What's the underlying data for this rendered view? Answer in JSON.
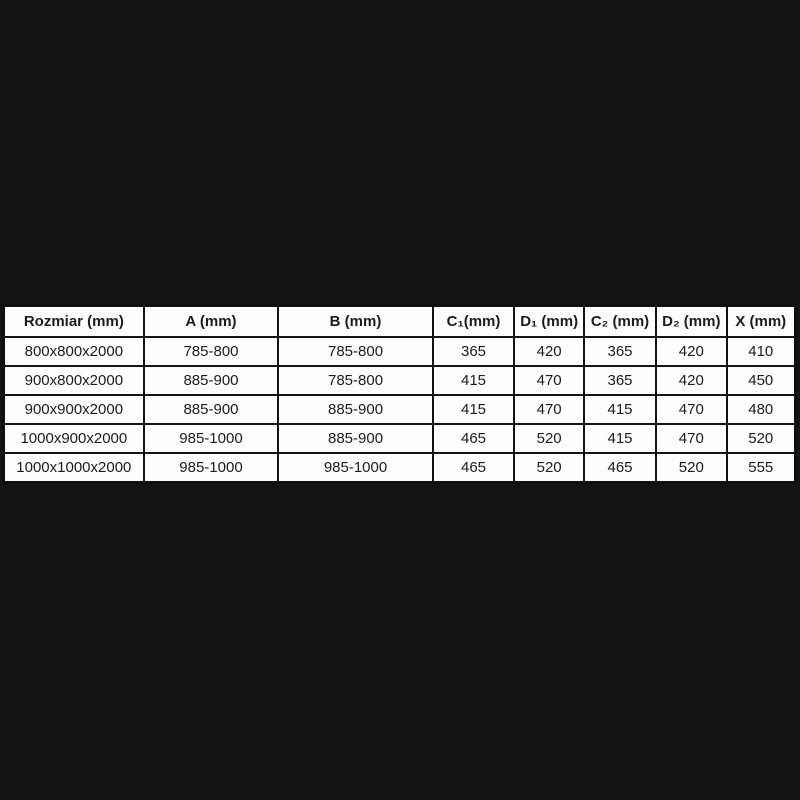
{
  "page": {
    "background_color": "#141414",
    "table_background_color": "#fdfdfd",
    "border_color": "#0f0f0f",
    "text_color": "#1c1c1c"
  },
  "chart_data": {
    "type": "table",
    "title": "",
    "columns": [
      "Rozmiar (mm)",
      "A (mm)",
      "B (mm)",
      "C₁(mm)",
      "D₁ (mm)",
      "C₂ (mm)",
      "D₂ (mm)",
      "X (mm)"
    ],
    "rows": [
      [
        "800x800x2000",
        "785-800",
        "785-800",
        "365",
        "420",
        "365",
        "420",
        "410"
      ],
      [
        "900x800x2000",
        "885-900",
        "785-800",
        "415",
        "470",
        "365",
        "420",
        "450"
      ],
      [
        "900x900x2000",
        "885-900",
        "885-900",
        "415",
        "470",
        "415",
        "470",
        "480"
      ],
      [
        "1000x900x2000",
        "985-1000",
        "885-900",
        "465",
        "520",
        "415",
        "470",
        "520"
      ],
      [
        "1000x1000x2000",
        "985-1000",
        "985-1000",
        "465",
        "520",
        "465",
        "520",
        "555"
      ]
    ],
    "layout": {
      "legend": "none",
      "grid": "full-cell-borders",
      "header_style": "bold",
      "alignment": "center"
    }
  }
}
